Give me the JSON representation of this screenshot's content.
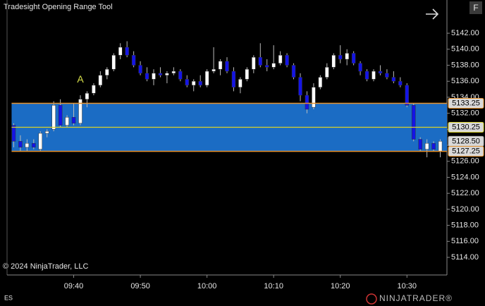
{
  "chart_data": {
    "type": "candlestick",
    "title": "Tradesight Opening Range Tool",
    "copyright": "© 2024 NinjaTrader, LLC",
    "instrument": "ES",
    "menu_label": "F",
    "logo": "NINJATRADER®",
    "annotation": "A",
    "annotation_x": "09:41",
    "x": [
      "09:31",
      "09:32",
      "09:33",
      "09:34",
      "09:35",
      "09:36",
      "09:37",
      "09:38",
      "09:39",
      "09:40",
      "09:41",
      "09:42",
      "09:43",
      "09:44",
      "09:45",
      "09:46",
      "09:47",
      "09:48",
      "09:49",
      "09:50",
      "09:51",
      "09:52",
      "09:53",
      "09:54",
      "09:55",
      "09:56",
      "09:57",
      "09:58",
      "09:59",
      "10:00",
      "10:01",
      "10:02",
      "10:03",
      "10:04",
      "10:05",
      "10:06",
      "10:07",
      "10:08",
      "10:09",
      "10:10",
      "10:11",
      "10:12",
      "10:13",
      "10:14",
      "10:15",
      "10:16",
      "10:17",
      "10:18",
      "10:19",
      "10:20",
      "10:21",
      "10:22",
      "10:23",
      "10:24",
      "10:25",
      "10:26",
      "10:27",
      "10:28",
      "10:29",
      "10:30",
      "10:31",
      "10:32",
      "10:33",
      "10:34",
      "10:35"
    ],
    "open": [
      5130.5,
      5128.5,
      5127.75,
      5128.25,
      5127.5,
      5129.5,
      5130,
      5133,
      5130.5,
      5131.5,
      5130.75,
      5133.75,
      5134.5,
      5135.5,
      5136.75,
      5137.5,
      5139.25,
      5140.25,
      5139.25,
      5138,
      5137,
      5136.25,
      5137,
      5136.75,
      5137,
      5137.25,
      5136.25,
      5135.5,
      5136,
      5135.5,
      5137.25,
      5137.5,
      5138.5,
      5137.25,
      5135.25,
      5136.25,
      5137.5,
      5139,
      5138,
      5137.75,
      5138.25,
      5139.25,
      5138,
      5136.5,
      5134.25,
      5132.75,
      5135.25,
      5136.5,
      5137.75,
      5139.25,
      5138.75,
      5139.5,
      5138.25,
      5137.25,
      5136.25,
      5137.25,
      5137,
      5136.5,
      5136,
      5135.5,
      5133,
      5128.75,
      5127.5,
      5128.25,
      5127.25
    ],
    "high": [
      5130.75,
      5129.25,
      5128.75,
      5128.75,
      5129.75,
      5130,
      5133.5,
      5133.75,
      5131.75,
      5133.25,
      5134.25,
      5134.75,
      5135.75,
      5137.25,
      5137.75,
      5139.5,
      5140.75,
      5141,
      5139.75,
      5138.5,
      5137.75,
      5137.5,
      5137.75,
      5137.25,
      5137.75,
      5137.5,
      5136.75,
      5136.25,
      5136.75,
      5137.5,
      5140.25,
      5138.75,
      5139,
      5137.75,
      5136.5,
      5137.75,
      5139.25,
      5140.75,
      5138.75,
      5140.5,
      5139.75,
      5139.5,
      5138.25,
      5137,
      5134.75,
      5135.75,
      5136.75,
      5138.25,
      5139.5,
      5140.5,
      5140,
      5139.75,
      5138.5,
      5137.5,
      5137.5,
      5138,
      5137.5,
      5137.25,
      5136.5,
      5135.75,
      5133.25,
      5129,
      5128.75,
      5128.5,
      5128.75
    ],
    "low": [
      5127.75,
      5127.25,
      5127.25,
      5127.5,
      5127.25,
      5129,
      5129.75,
      5130.25,
      5130.25,
      5130.5,
      5130.5,
      5132.75,
      5134.25,
      5135.25,
      5136.25,
      5137.25,
      5138.75,
      5139,
      5137.75,
      5136.75,
      5136,
      5135.5,
      5136.5,
      5135.75,
      5136.75,
      5136,
      5135.25,
      5134.75,
      5135.25,
      5135.25,
      5137,
      5136.75,
      5137,
      5134.75,
      5134.5,
      5136,
      5137,
      5137.75,
      5137.25,
      5137.5,
      5138,
      5137.75,
      5136.25,
      5133.5,
      5132,
      5132.5,
      5135,
      5136.25,
      5137.5,
      5138.25,
      5138,
      5138,
      5136.75,
      5136,
      5136,
      5136.75,
      5136.25,
      5135.75,
      5135.25,
      5132.75,
      5128.5,
      5127.25,
      5126.5,
      5127.25,
      5126.5
    ],
    "close": [
      5128.5,
      5127.75,
      5128.25,
      5127.75,
      5129.5,
      5129.75,
      5133,
      5130.5,
      5131.5,
      5130.75,
      5133.75,
      5134.5,
      5135.5,
      5136.75,
      5137.5,
      5139.25,
      5140.25,
      5139.25,
      5138,
      5137,
      5136.25,
      5137,
      5136.75,
      5137,
      5137.25,
      5136.25,
      5135.5,
      5136,
      5135.5,
      5137.25,
      5137.5,
      5138.5,
      5137.25,
      5135.25,
      5136.25,
      5137.5,
      5139,
      5138,
      5137.75,
      5138.25,
      5139.25,
      5138,
      5136.5,
      5134.25,
      5132.5,
      5135.25,
      5136.5,
      5137.75,
      5139.25,
      5138.75,
      5139.5,
      5138.25,
      5137.25,
      5136.25,
      5137.25,
      5137,
      5136.5,
      5136,
      5135.5,
      5133,
      5128.75,
      5127.5,
      5128.25,
      5127.5,
      5128.5
    ],
    "up_color": "#ffffff",
    "down_color": "#1414e6",
    "range_high": 5133.25,
    "range_mid": 5130.25,
    "range_low": 5127.25,
    "last_price": {
      "value": 5128.5,
      "label": "5128.50"
    },
    "range_color": "#1b6cc4",
    "range_line_color": "#e8922a",
    "mid_line_color": "#d8d22a",
    "xlim": [
      "09:30",
      "10:36"
    ],
    "xticks": [
      "09:40",
      "09:50",
      "10:00",
      "10:10",
      "10:20",
      "10:30"
    ],
    "ylim": [
      5111.8,
      5146.15
    ],
    "yticks": [
      {
        "value": 5114,
        "label": "5114.00"
      },
      {
        "value": 5116,
        "label": "5116.00"
      },
      {
        "value": 5118,
        "label": "5118.00"
      },
      {
        "value": 5120,
        "label": "5120.00"
      },
      {
        "value": 5122,
        "label": "5122.00"
      },
      {
        "value": 5124,
        "label": "5124.00"
      },
      {
        "value": 5126,
        "label": "5126.00"
      },
      {
        "value": 5128,
        "label": "5128.00"
      },
      {
        "value": 5130,
        "label": "5130.00"
      },
      {
        "value": 5132,
        "label": "5132.00"
      },
      {
        "value": 5134,
        "label": "5134.00"
      },
      {
        "value": 5136,
        "label": "5136.00"
      },
      {
        "value": 5138,
        "label": "5138.00"
      },
      {
        "value": 5140,
        "label": "5140.00"
      },
      {
        "value": 5142,
        "label": "5142.00"
      }
    ]
  }
}
